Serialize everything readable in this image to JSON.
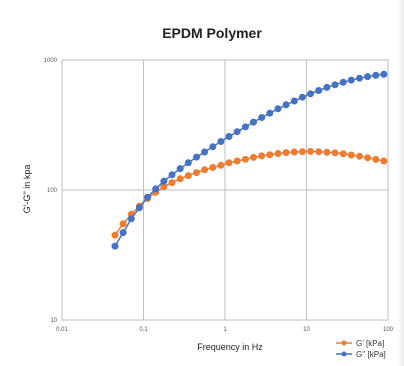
{
  "chart_data": {
    "type": "scatter",
    "title": "EPDM Polymer",
    "xlabel": "Frequency in Hz",
    "ylabel": "G'-G'' in kpa",
    "xscale": "log",
    "yscale": "log",
    "xlim": [
      0.01,
      100
    ],
    "ylim": [
      10,
      1000
    ],
    "x_ticks": [
      {
        "value": 0.01,
        "label": "0.01"
      },
      {
        "value": 0.1,
        "label": "0.1"
      },
      {
        "value": 1,
        "label": "1"
      },
      {
        "value": 10,
        "label": "10"
      },
      {
        "value": 100,
        "label": "100"
      }
    ],
    "y_ticks": [
      {
        "value": 10,
        "label": "10"
      },
      {
        "value": 100,
        "label": "100"
      },
      {
        "value": 1000,
        "label": "1000"
      }
    ],
    "grid": true,
    "legend_position": "bottom-right",
    "series": [
      {
        "name": "G' [kPa]",
        "color": "#ED7D31",
        "x": [
          0.0447,
          0.0562,
          0.0708,
          0.0891,
          0.112,
          0.141,
          0.178,
          0.224,
          0.282,
          0.355,
          0.447,
          0.562,
          0.708,
          0.891,
          1.12,
          1.41,
          1.78,
          2.24,
          2.82,
          3.55,
          4.47,
          5.62,
          7.08,
          8.91,
          11.2,
          14.1,
          17.8,
          22.4,
          28.2,
          35.5,
          44.7,
          56.2,
          70.8,
          89.1
        ],
        "y": [
          45,
          55,
          65,
          75,
          86,
          96,
          106,
          114,
          122,
          129,
          136,
          143,
          149,
          155,
          162,
          167,
          172,
          178,
          183,
          187,
          191,
          194,
          196,
          197,
          198,
          197,
          195,
          193,
          190,
          186,
          182,
          177,
          172,
          167
        ]
      },
      {
        "name": "G'' [kPa]",
        "color": "#4472C4",
        "x": [
          0.0447,
          0.0562,
          0.0708,
          0.0891,
          0.112,
          0.141,
          0.178,
          0.224,
          0.282,
          0.355,
          0.447,
          0.562,
          0.708,
          0.891,
          1.12,
          1.41,
          1.78,
          2.24,
          2.82,
          3.55,
          4.47,
          5.62,
          7.08,
          8.91,
          11.2,
          14.1,
          17.8,
          22.4,
          28.2,
          35.5,
          44.7,
          56.2,
          70.8,
          89.1
        ],
        "y": [
          37,
          47,
          60,
          73,
          88,
          102,
          117,
          131,
          146,
          162,
          179,
          196,
          215,
          236,
          258,
          281,
          306,
          333,
          361,
          390,
          421,
          452,
          484,
          517,
          550,
          583,
          615,
          645,
          674,
          700,
          724,
          745,
          762,
          776
        ]
      }
    ]
  }
}
